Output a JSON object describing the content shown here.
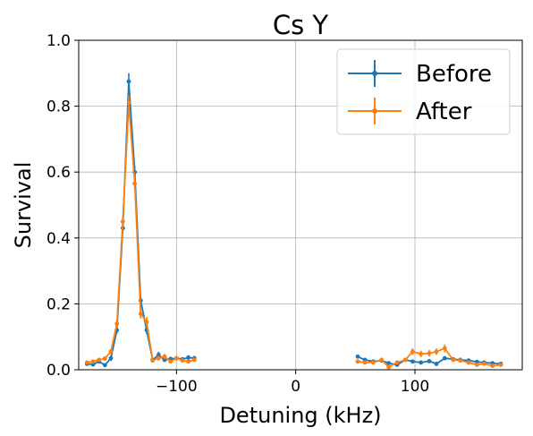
{
  "chart_data": {
    "type": "line",
    "title": "Cs Y",
    "xlabel": "Detuning (kHz)",
    "ylabel": "Survival",
    "xlim": [
      -182,
      190
    ],
    "ylim": [
      0,
      1.0
    ],
    "xticks": [
      -100,
      0,
      100
    ],
    "xtick_labels": [
      "−100",
      "0",
      "100"
    ],
    "yticks": [
      0,
      0.2,
      0.4,
      0.6,
      0.8,
      1.0
    ],
    "ytick_labels": [
      "0.0",
      "0.2",
      "0.4",
      "0.6",
      "0.8",
      "1.0"
    ],
    "grid": true,
    "legend_position": "top-right",
    "series": [
      {
        "name": "Before",
        "color": "#1f77b4",
        "segments": [
          {
            "x": [
              -175,
              -170,
              -165,
              -160,
              -155,
              -150,
              -145,
              -140,
              -135,
              -130,
              -125,
              -120,
              -115,
              -110,
              -105,
              -100,
              -95,
              -90,
              -85
            ],
            "y": [
              0.018,
              0.016,
              0.025,
              0.014,
              0.035,
              0.12,
              0.43,
              0.875,
              0.6,
              0.21,
              0.12,
              0.03,
              0.045,
              0.03,
              0.033,
              0.035,
              0.032,
              0.037,
              0.035
            ],
            "err": [
              0.005,
              0.005,
              0.006,
              0.005,
              0.008,
              0.01,
              0.015,
              0.025,
              0.02,
              0.012,
              0.012,
              0.006,
              0.01,
              0.006,
              0.006,
              0.006,
              0.006,
              0.007,
              0.007
            ]
          },
          {
            "x": [
              52,
              58,
              65,
              72,
              78,
              85,
              92,
              98,
              105,
              112,
              118,
              125,
              132,
              138,
              145,
              152,
              158,
              165,
              172
            ],
            "y": [
              0.04,
              0.03,
              0.025,
              0.028,
              0.02,
              0.015,
              0.03,
              0.025,
              0.022,
              0.026,
              0.018,
              0.035,
              0.032,
              0.03,
              0.028,
              0.024,
              0.022,
              0.02,
              0.018
            ],
            "err": [
              0.006,
              0.005,
              0.005,
              0.005,
              0.004,
              0.004,
              0.005,
              0.005,
              0.004,
              0.005,
              0.004,
              0.006,
              0.006,
              0.005,
              0.005,
              0.004,
              0.004,
              0.004,
              0.004
            ]
          }
        ]
      },
      {
        "name": "After",
        "color": "#ff7f0e",
        "segments": [
          {
            "x": [
              -175,
              -170,
              -165,
              -160,
              -155,
              -150,
              -145,
              -140,
              -135,
              -130,
              -125,
              -120,
              -115,
              -110,
              -105,
              -100,
              -95,
              -90,
              -85
            ],
            "y": [
              0.022,
              0.025,
              0.03,
              0.034,
              0.055,
              0.14,
              0.45,
              0.81,
              0.565,
              0.17,
              0.145,
              0.028,
              0.035,
              0.04,
              0.025,
              0.035,
              0.028,
              0.025,
              0.03
            ],
            "err": [
              0.005,
              0.006,
              0.006,
              0.007,
              0.008,
              0.012,
              0.015,
              0.022,
              0.02,
              0.015,
              0.015,
              0.006,
              0.007,
              0.008,
              0.006,
              0.007,
              0.006,
              0.006,
              0.006
            ]
          },
          {
            "x": [
              52,
              58,
              65,
              72,
              78,
              85,
              92,
              98,
              105,
              112,
              118,
              125,
              132,
              138,
              145,
              152,
              158,
              165,
              172
            ],
            "y": [
              0.025,
              0.022,
              0.022,
              0.03,
              0.008,
              0.022,
              0.03,
              0.055,
              0.048,
              0.05,
              0.055,
              0.065,
              0.03,
              0.028,
              0.022,
              0.015,
              0.018,
              0.012,
              0.015
            ],
            "err": [
              0.005,
              0.005,
              0.005,
              0.006,
              0.004,
              0.005,
              0.006,
              0.01,
              0.01,
              0.01,
              0.01,
              0.012,
              0.006,
              0.006,
              0.005,
              0.004,
              0.004,
              0.004,
              0.004
            ]
          }
        ]
      }
    ]
  }
}
